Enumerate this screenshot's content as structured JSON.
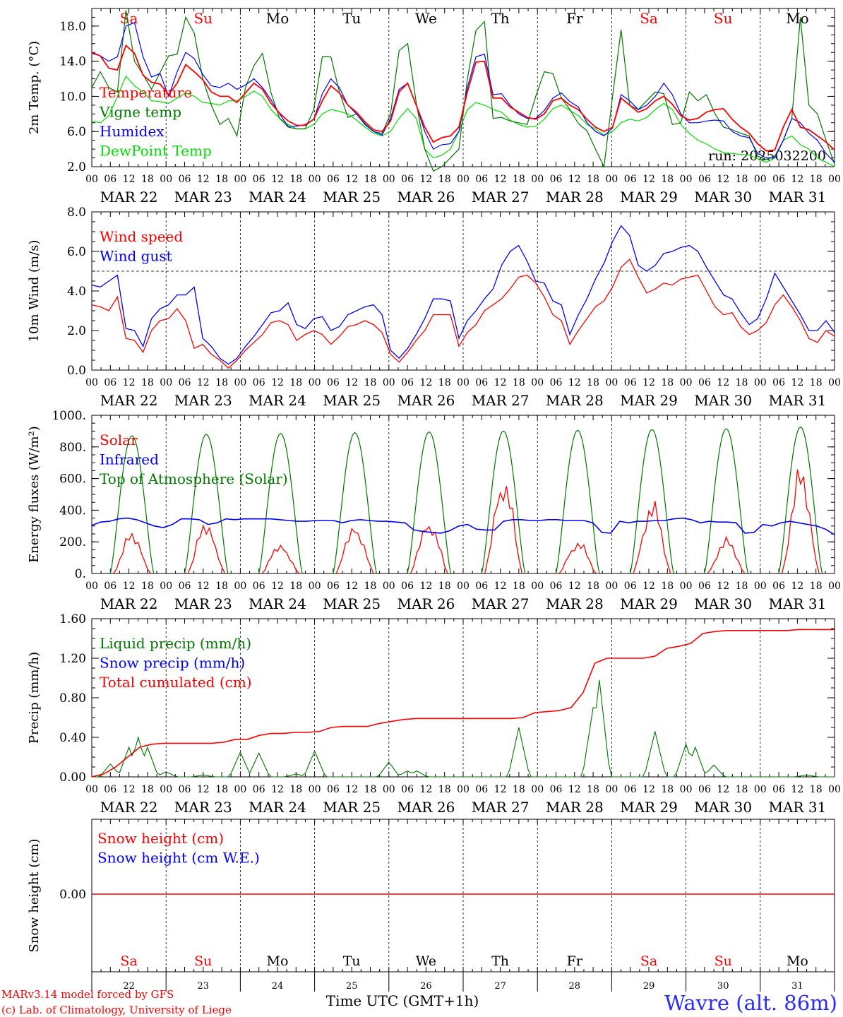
{
  "chart_data": [
    {
      "type": "line",
      "ylabel": "2m Temp. (°C)",
      "ylim": [
        2.0,
        20.0
      ],
      "yticks": [
        "2.0",
        "6.0",
        "10.0",
        "14.0",
        "18.0"
      ],
      "ytick_values": [
        2,
        6,
        10,
        14,
        18
      ],
      "day_labels": [
        "Sa",
        "Su",
        "Mo",
        "Tu",
        "We",
        "Th",
        "Fr",
        "Sa",
        "Su",
        "Mo"
      ],
      "weekend_days": [
        0,
        1,
        7,
        8
      ],
      "annotation": "run: 2025032200",
      "x_hours_step": 6,
      "series": [
        {
          "name": "Temperature",
          "color": "#ff0000",
          "values": [
            15.0,
            14.6,
            13.2,
            13.0,
            15.8,
            14.9,
            12.4,
            11.6,
            11.4,
            10.2,
            11.5,
            13.6,
            12.8,
            11.9,
            10.5,
            10.0,
            10.0,
            9.3,
            10.4,
            11.5,
            10.8,
            9.2,
            8.1,
            7.2,
            6.7,
            6.7,
            7.4,
            9.5,
            11.2,
            10.4,
            9.0,
            8.2,
            7.1,
            6.2,
            6.0,
            7.2,
            10.5,
            11.5,
            9.0,
            6.5,
            4.8,
            5.3,
            5.5,
            6.5,
            10.5,
            13.9,
            14.0,
            9.8,
            9.8,
            8.8,
            8.2,
            7.6,
            7.4,
            8.0,
            9.5,
            9.8,
            9.0,
            8.5,
            7.4,
            6.5,
            6.0,
            6.5,
            9.8,
            9.0,
            8.2,
            8.6,
            9.5,
            10.0,
            9.1,
            7.8,
            7.3,
            7.5,
            8.2,
            8.5,
            8.6,
            7.4,
            6.5,
            5.8,
            4.6,
            3.8,
            3.9,
            6.5,
            8.5,
            6.5,
            6.2,
            5.5,
            4.8,
            3.9
          ]
        },
        {
          "name": "Vigne temp",
          "color": "#007800",
          "values": [
            11.0,
            12.8,
            11.0,
            10.5,
            19.8,
            14.0,
            12.5,
            10.8,
            12.7,
            14.6,
            14.8,
            19.0,
            17.2,
            12.0,
            9.0,
            6.8,
            7.5,
            5.5,
            11.0,
            13.5,
            14.9,
            10.4,
            7.5,
            6.5,
            6.3,
            6.3,
            8.5,
            14.5,
            14.5,
            10.5,
            7.6,
            8.0,
            6.9,
            6.0,
            5.8,
            8.0,
            15.2,
            16.0,
            9.3,
            4.0,
            1.5,
            2.0,
            3.0,
            4.0,
            12.0,
            17.5,
            18.5,
            7.5,
            7.6,
            7.2,
            7.0,
            6.8,
            10.0,
            12.8,
            12.6,
            9.8,
            8.5,
            6.9,
            6.1,
            4.0,
            2.0,
            10.0,
            17.6,
            9.0,
            8.5,
            9.5,
            10.5,
            10.3,
            6.8,
            7.0,
            10.5,
            9.5,
            10.2,
            8.0,
            6.5,
            6.2,
            5.8,
            5.5,
            3.2,
            2.8,
            3.2,
            5.0,
            7.5,
            19.0,
            9.0,
            8.0,
            5.0,
            2.3
          ]
        },
        {
          "name": "Humidex",
          "color": "#0000ff",
          "values": [
            14.9,
            14.6,
            14.0,
            14.5,
            18.0,
            18.4,
            14.5,
            12.2,
            12.6,
            10.0,
            12.8,
            15.0,
            14.3,
            12.5,
            11.2,
            11.0,
            11.5,
            10.8,
            11.3,
            12.0,
            11.0,
            9.6,
            8.0,
            6.6,
            6.6,
            6.8,
            7.4,
            10.3,
            12.0,
            11.0,
            9.0,
            8.0,
            6.8,
            6.0,
            5.6,
            7.5,
            10.8,
            11.5,
            9.0,
            6.0,
            4.0,
            4.5,
            4.6,
            6.0,
            11.0,
            14.5,
            14.8,
            10.2,
            10.3,
            9.0,
            8.0,
            7.5,
            7.5,
            8.4,
            9.8,
            10.4,
            9.4,
            8.8,
            7.0,
            6.0,
            5.5,
            6.4,
            10.2,
            9.5,
            8.5,
            9.0,
            10.0,
            11.5,
            10.2,
            8.0,
            7.0,
            7.0,
            7.2,
            7.3,
            7.2,
            6.0,
            5.5,
            5.3,
            3.5,
            3.0,
            3.0,
            5.0,
            7.5,
            7.0,
            5.8,
            5.0,
            3.5,
            2.5
          ]
        },
        {
          "name": "DewPoint Temp",
          "color": "#00e000",
          "values": [
            7.2,
            7.0,
            7.8,
            10.0,
            12.3,
            11.2,
            10.5,
            9.5,
            9.4,
            9.2,
            9.8,
            10.4,
            10.0,
            9.3,
            9.2,
            9.0,
            9.5,
            9.5,
            10.0,
            10.6,
            10.0,
            8.5,
            7.5,
            6.8,
            6.3,
            6.3,
            6.8,
            8.0,
            8.5,
            8.3,
            8.0,
            7.3,
            6.5,
            5.8,
            5.5,
            6.0,
            7.5,
            8.6,
            7.5,
            4.0,
            3.0,
            3.3,
            4.0,
            6.0,
            8.5,
            9.3,
            9.0,
            8.5,
            8.2,
            7.3,
            6.8,
            6.5,
            6.6,
            7.4,
            8.6,
            9.0,
            8.4,
            7.8,
            6.8,
            6.3,
            5.6,
            6.0,
            7.0,
            7.4,
            7.2,
            7.6,
            8.5,
            9.2,
            8.5,
            6.8,
            5.8,
            5.0,
            4.6,
            4.0,
            3.6,
            3.5,
            3.4,
            3.3,
            2.9,
            2.5,
            3.0,
            5.0,
            5.5,
            4.5,
            4.0,
            3.0,
            2.5,
            2.0
          ]
        }
      ]
    },
    {
      "type": "line",
      "ylabel": "10m Wind (m/s)",
      "ylim": [
        0.0,
        8.0
      ],
      "yticks": [
        "0.0",
        "2.0",
        "4.0",
        "6.0",
        "8.0"
      ],
      "ytick_values": [
        0,
        2,
        4,
        6,
        8
      ],
      "reference_line": 5.0,
      "series": [
        {
          "name": "Wind speed",
          "color": "#ff0000",
          "values": [
            3.3,
            3.2,
            3.0,
            3.7,
            1.6,
            1.5,
            0.9,
            2.0,
            2.5,
            2.6,
            3.1,
            2.5,
            1.1,
            1.3,
            0.8,
            0.5,
            0.1,
            0.5,
            1.0,
            1.4,
            1.8,
            2.4,
            2.5,
            2.3,
            1.5,
            1.8,
            2.0,
            1.8,
            1.3,
            1.7,
            2.2,
            2.3,
            2.5,
            2.3,
            1.9,
            0.8,
            0.4,
            0.9,
            1.5,
            2.0,
            2.8,
            2.8,
            2.8,
            1.2,
            1.9,
            2.3,
            3.0,
            3.3,
            3.6,
            4.1,
            4.7,
            4.8,
            4.4,
            3.7,
            2.8,
            2.5,
            1.3,
            2.0,
            2.6,
            3.2,
            3.5,
            4.2,
            5.2,
            5.6,
            4.7,
            3.9,
            4.1,
            4.4,
            4.3,
            4.6,
            4.7,
            4.8,
            4.0,
            3.2,
            2.8,
            2.9,
            2.2,
            1.8,
            2.0,
            2.4,
            3.3,
            3.8,
            3.2,
            2.5,
            1.6,
            1.4,
            2.0,
            1.7
          ]
        },
        {
          "name": "Wind gust",
          "color": "#0000ff",
          "values": [
            4.3,
            4.2,
            4.5,
            4.8,
            2.1,
            2.0,
            1.2,
            2.6,
            3.1,
            3.3,
            3.8,
            3.8,
            4.2,
            1.6,
            1.2,
            0.6,
            0.3,
            0.6,
            1.2,
            1.7,
            2.3,
            2.9,
            3.0,
            3.4,
            2.3,
            2.1,
            2.6,
            2.7,
            2.0,
            2.2,
            2.8,
            3.0,
            3.2,
            3.3,
            2.8,
            1.0,
            0.6,
            1.1,
            1.8,
            2.6,
            3.6,
            3.6,
            3.5,
            1.6,
            2.5,
            3.0,
            3.6,
            4.1,
            5.3,
            6.0,
            6.3,
            5.5,
            4.5,
            4.4,
            3.5,
            3.3,
            1.8,
            2.8,
            3.6,
            4.6,
            5.4,
            6.5,
            7.3,
            6.8,
            5.3,
            5.0,
            5.3,
            5.9,
            6.0,
            6.2,
            6.3,
            6.0,
            5.2,
            4.5,
            3.8,
            3.6,
            2.9,
            2.3,
            2.6,
            3.6,
            4.9,
            4.2,
            3.5,
            2.8,
            2.0,
            2.0,
            2.5,
            1.9
          ]
        }
      ]
    },
    {
      "type": "line",
      "ylabel": "Energy fluxes (W/m²)",
      "ylim": [
        0,
        1000
      ],
      "yticks": [
        "0.",
        "200.",
        "400.",
        "600.",
        "800.",
        "1000."
      ],
      "ytick_values": [
        0,
        200,
        400,
        600,
        800,
        1000
      ],
      "series": [
        {
          "name": "Solar",
          "color": "#ff0000",
          "peaks": [
            270,
            340,
            200,
            335,
            370,
            670,
            220,
            480,
            230,
            690
          ]
        },
        {
          "name": "Infrared",
          "color": "#0000ff",
          "values": [
            305,
            325,
            330,
            345,
            350,
            340,
            320,
            300,
            290,
            310,
            345,
            345,
            340,
            310,
            320,
            345,
            340,
            345,
            345,
            345,
            345,
            340,
            335,
            330,
            330,
            335,
            335,
            335,
            320,
            335,
            340,
            335,
            330,
            330,
            325,
            320,
            275,
            265,
            260,
            255,
            270,
            300,
            310,
            280,
            275,
            275,
            330,
            340,
            340,
            335,
            335,
            340,
            340,
            335,
            335,
            335,
            320,
            260,
            255,
            330,
            320,
            330,
            330,
            335,
            335,
            345,
            350,
            340,
            320,
            330,
            325,
            325,
            320,
            255,
            260,
            310,
            300,
            320,
            330,
            320,
            310,
            300,
            280,
            245
          ]
        },
        {
          "name": "Top of Atmosphere (Solar)",
          "color": "#007800",
          "peaks": [
            870,
            880,
            885,
            890,
            895,
            900,
            905,
            910,
            915,
            925
          ]
        }
      ]
    },
    {
      "type": "line",
      "ylabel": "Precip (mm/h)",
      "ylim": [
        0.0,
        1.6
      ],
      "yticks": [
        "0.00",
        "0.40",
        "0.80",
        "1.20",
        "1.60"
      ],
      "ytick_values": [
        0,
        0.4,
        0.8,
        1.2,
        1.6
      ],
      "series": [
        {
          "name": "Liquid precip (mm/h)",
          "color": "#007800"
        },
        {
          "name": "Snow precip (mm/h)",
          "color": "#0000ff"
        },
        {
          "name": "Total cumulated (cm)",
          "color": "#ff0000",
          "values": [
            0.0,
            0.03,
            0.1,
            0.2,
            0.3,
            0.33,
            0.34,
            0.34,
            0.34,
            0.34,
            0.34,
            0.35,
            0.38,
            0.38,
            0.42,
            0.44,
            0.44,
            0.45,
            0.45,
            0.46,
            0.5,
            0.51,
            0.51,
            0.51,
            0.54,
            0.56,
            0.58,
            0.59,
            0.59,
            0.59,
            0.59,
            0.59,
            0.59,
            0.59,
            0.59,
            0.59,
            0.6,
            0.65,
            0.66,
            0.67,
            0.7,
            0.85,
            1.15,
            1.2,
            1.2,
            1.2,
            1.2,
            1.22,
            1.3,
            1.32,
            1.35,
            1.45,
            1.47,
            1.48,
            1.48,
            1.48,
            1.48,
            1.48,
            1.48,
            1.49,
            1.49,
            1.49,
            1.49
          ]
        }
      ]
    },
    {
      "type": "line",
      "ylabel": "Snow height (cm)",
      "yticks": [
        "0.00"
      ],
      "series": [
        {
          "name": "Snow height (cm)",
          "color": "#ff0000"
        },
        {
          "name": "Snow height (cm W.E.)",
          "color": "#0000ff"
        }
      ]
    }
  ],
  "x_axis": {
    "hour_labels": [
      "00",
      "06",
      "12",
      "18"
    ],
    "end_label": "00",
    "day_dates": [
      "MAR 22",
      "MAR 23",
      "MAR 24",
      "MAR 25",
      "MAR 26",
      "MAR 27",
      "MAR 28",
      "MAR 29",
      "MAR 30",
      "MAR 31"
    ],
    "day_numbers": [
      "22",
      "23",
      "24",
      "25",
      "26",
      "27",
      "28",
      "29",
      "30",
      "31"
    ],
    "xlabel": "Time UTC (GMT+1h)"
  },
  "footer": {
    "credit_line1": "MARv3.14 model forced by GFS",
    "credit_line2": "(c) Lab. of Climatology, University of Liege",
    "station": "Wavre (alt. 86m)"
  },
  "colors": {
    "red": "#ff0000",
    "blue": "#0000ff",
    "dark_green": "#007800",
    "light_green": "#00e000"
  }
}
